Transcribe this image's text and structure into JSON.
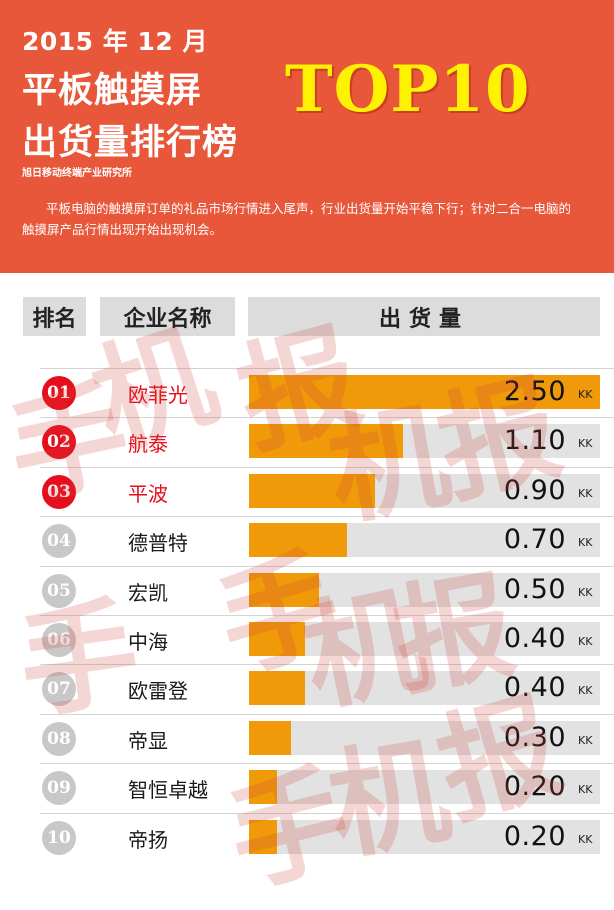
{
  "header": {
    "date": "2015 年 12 月",
    "title_line1": "平板触摸屏",
    "title_line2": "出货量排行榜",
    "badge": "TOP10",
    "source": "旭日移动终端产业研究所",
    "intro": "平板电脑的触摸屏订单的礼品市场行情进入尾声，行业出货量开始平稳下行；针对二合一电脑的触摸屏产品行情出现开始出现机会。"
  },
  "columns": {
    "rank": "排名",
    "company": "企业名称",
    "shipment": "出货量"
  },
  "watermark": "手机报",
  "colors": {
    "header_bg": "#e8573a",
    "bar": "#f09a0a",
    "track": "#e2e2e2",
    "top3": "#e60e1d",
    "badge_gray": "#c8c8c8",
    "title_accent": "#fff200"
  },
  "chart_data": {
    "type": "bar",
    "orientation": "horizontal",
    "unit": "KK",
    "xlim": [
      0,
      2.5
    ],
    "categories": [
      "欧菲光",
      "航泰",
      "平波",
      "德普特",
      "宏凯",
      "中海",
      "欧雷登",
      "帝显",
      "智恒卓越",
      "帝扬"
    ],
    "values": [
      2.5,
      1.1,
      0.9,
      0.7,
      0.5,
      0.4,
      0.4,
      0.3,
      0.2,
      0.2
    ],
    "rows": [
      {
        "rank": "01",
        "company": "欧菲光",
        "value": 2.5,
        "value_label": "2.50",
        "unit": "KK",
        "top3": true
      },
      {
        "rank": "02",
        "company": "航泰",
        "value": 1.1,
        "value_label": "1.10",
        "unit": "KK",
        "top3": true
      },
      {
        "rank": "03",
        "company": "平波",
        "value": 0.9,
        "value_label": "0.90",
        "unit": "KK",
        "top3": true
      },
      {
        "rank": "04",
        "company": "德普特",
        "value": 0.7,
        "value_label": "0.70",
        "unit": "KK",
        "top3": false
      },
      {
        "rank": "05",
        "company": "宏凯",
        "value": 0.5,
        "value_label": "0.50",
        "unit": "KK",
        "top3": false
      },
      {
        "rank": "06",
        "company": "中海",
        "value": 0.4,
        "value_label": "0.40",
        "unit": "KK",
        "top3": false
      },
      {
        "rank": "07",
        "company": "欧雷登",
        "value": 0.4,
        "value_label": "0.40",
        "unit": "KK",
        "top3": false
      },
      {
        "rank": "08",
        "company": "帝显",
        "value": 0.3,
        "value_label": "0.30",
        "unit": "KK",
        "top3": false
      },
      {
        "rank": "09",
        "company": "智恒卓越",
        "value": 0.2,
        "value_label": "0.20",
        "unit": "KK",
        "top3": false
      },
      {
        "rank": "10",
        "company": "帝扬",
        "value": 0.2,
        "value_label": "0.20",
        "unit": "KK",
        "top3": false
      }
    ]
  }
}
